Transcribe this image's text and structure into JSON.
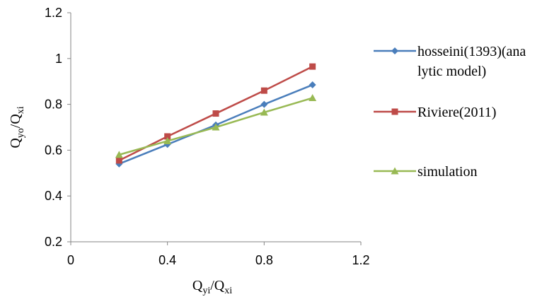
{
  "chart_data": {
    "type": "line",
    "xlim": [
      0,
      1.2
    ],
    "ylim": [
      0.2,
      1.2
    ],
    "x_ticks": [
      0,
      0.4,
      0.8,
      1.2
    ],
    "y_ticks": [
      0.2,
      0.4,
      0.6,
      0.8,
      1,
      1.2
    ],
    "x_tick_labels": [
      "0",
      "0.4",
      "0.8",
      "1.2"
    ],
    "y_tick_labels": [
      "0.2",
      "0.4",
      "0.6",
      "0.8",
      "1",
      "1.2"
    ],
    "xlabel": {
      "main": "Q",
      "sub1": "yi",
      "sep": "/Q",
      "sub2": "xi"
    },
    "ylabel": {
      "main": "Q",
      "sub1": "yo",
      "sep": "/Q",
      "sub2": "xi"
    },
    "grid": false,
    "legend_position": "right",
    "series": [
      {
        "name": "hosseini(1393)(analytic model)",
        "legend_lines": [
          "hosseini(1393)(ana",
          "lytic model)"
        ],
        "color": "#4a7ebb",
        "marker": "diamond",
        "x": [
          0.2,
          0.4,
          0.6,
          0.8,
          1.0
        ],
        "y": [
          0.54,
          0.625,
          0.71,
          0.8,
          0.885
        ]
      },
      {
        "name": "Riviere(2011)",
        "legend_lines": [
          "Riviere(2011)"
        ],
        "color": "#be4b48",
        "marker": "square",
        "x": [
          0.2,
          0.4,
          0.6,
          0.8,
          1.0
        ],
        "y": [
          0.555,
          0.66,
          0.76,
          0.86,
          0.965
        ]
      },
      {
        "name": "simulation",
        "legend_lines": [
          "simulation"
        ],
        "color": "#98b954",
        "marker": "triangle",
        "x": [
          0.2,
          0.4,
          0.6,
          0.8,
          1.0
        ],
        "y": [
          0.58,
          0.64,
          0.7,
          0.765,
          0.828
        ]
      }
    ]
  }
}
